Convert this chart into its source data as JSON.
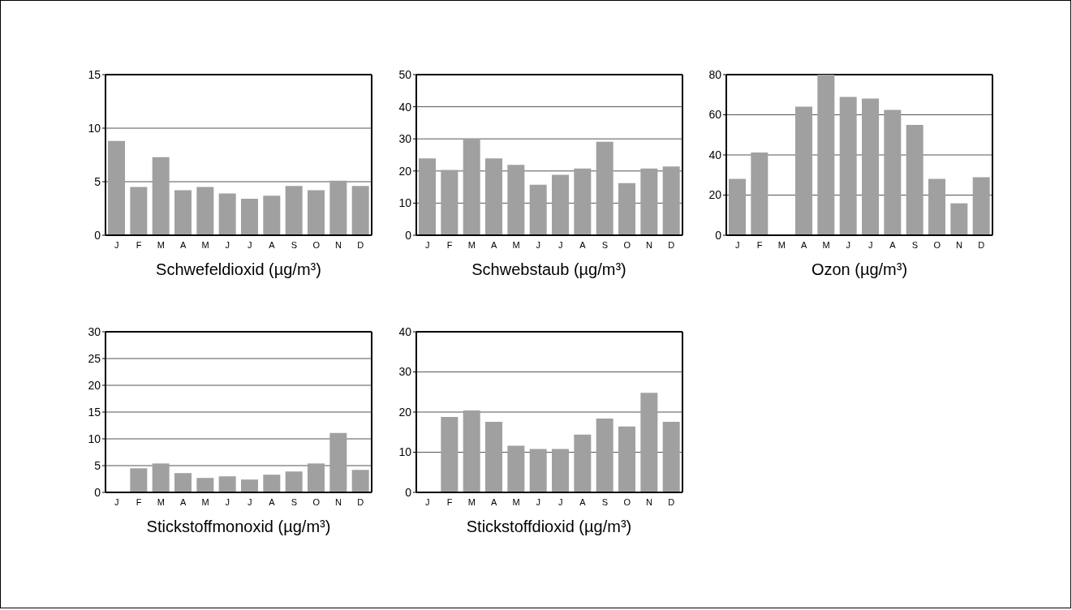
{
  "chart_data": [
    {
      "type": "bar",
      "xlabel": "Schwefeldioxid (µg/m³)",
      "categories": [
        "J",
        "F",
        "M",
        "A",
        "M",
        "J",
        "J",
        "A",
        "S",
        "O",
        "N",
        "D"
      ],
      "values": [
        8.8,
        4.5,
        7.3,
        4.2,
        4.5,
        3.9,
        3.4,
        3.7,
        4.6,
        4.2,
        5.1,
        4.6
      ],
      "color": "#a0a0a0",
      "ylim": [
        0,
        15
      ],
      "yticks": [
        0,
        5,
        10,
        15
      ],
      "grid": "y"
    },
    {
      "type": "bar",
      "xlabel": "Schwebstaub (µg/m³)",
      "categories": [
        "J",
        "F",
        "M",
        "A",
        "M",
        "J",
        "J",
        "A",
        "S",
        "O",
        "N",
        "D"
      ],
      "values": [
        23.9,
        20.3,
        30.1,
        23.9,
        21.9,
        15.7,
        18.8,
        20.8,
        29.1,
        16.2,
        20.8,
        21.4
      ],
      "color": "#a0a0a0",
      "ylim": [
        0,
        50
      ],
      "yticks": [
        0,
        10,
        20,
        30,
        40,
        50
      ],
      "grid": "y"
    },
    {
      "type": "bar",
      "xlabel": "Ozon (µg/m³)",
      "categories": [
        "J",
        "F",
        "M",
        "A",
        "M",
        "J",
        "J",
        "A",
        "S",
        "O",
        "N",
        "D"
      ],
      "values": [
        28.1,
        41.2,
        null,
        64.0,
        80,
        68.9,
        68.1,
        62.4,
        55.0,
        28.1,
        15.9,
        28.9
      ],
      "color": "#a0a0a0",
      "ylim": [
        0,
        80
      ],
      "yticks": [
        0,
        20,
        40,
        60,
        80
      ],
      "grid": "y"
    },
    {
      "type": "bar",
      "xlabel": "Stickstoffmonoxid (µg/m³)",
      "categories": [
        "J",
        "F",
        "M",
        "A",
        "M",
        "J",
        "J",
        "A",
        "S",
        "O",
        "N",
        "D"
      ],
      "values": [
        null,
        4.5,
        5.4,
        3.6,
        2.7,
        3.0,
        2.4,
        3.3,
        3.9,
        5.4,
        11.1,
        4.2
      ],
      "color": "#a0a0a0",
      "ylim": [
        0,
        30
      ],
      "yticks": [
        0,
        5,
        10,
        15,
        20,
        25,
        30
      ],
      "grid": "y"
    },
    {
      "type": "bar",
      "xlabel": "Stickstoffdioxid (µg/m³)",
      "categories": [
        "J",
        "F",
        "M",
        "A",
        "M",
        "J",
        "J",
        "A",
        "S",
        "O",
        "N",
        "D"
      ],
      "values": [
        null,
        18.8,
        20.4,
        17.6,
        11.6,
        10.8,
        10.8,
        14.4,
        18.4,
        16.4,
        24.8,
        17.6
      ],
      "color": "#a0a0a0",
      "ylim": [
        0,
        40
      ],
      "yticks": [
        0,
        10,
        20,
        30,
        40
      ],
      "grid": "y"
    }
  ]
}
